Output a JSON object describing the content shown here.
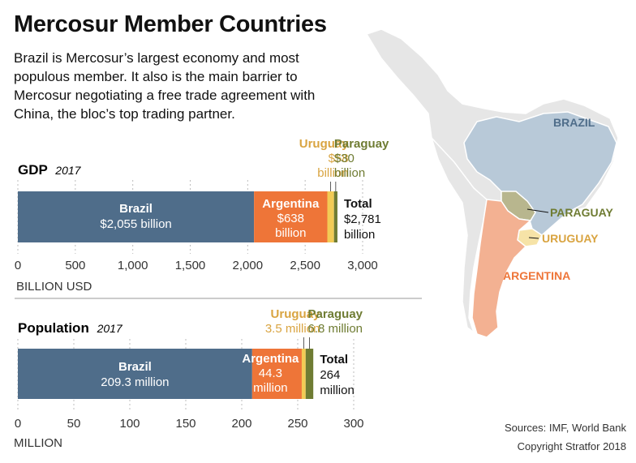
{
  "header": {
    "title": "Mercosur Member Countries",
    "subtitle": "Brazil is Mercosur’s largest economy and most populous member. It also is the main barrier to Mercosur negotiating a free trade agreement with China, the bloc’s top trading partner."
  },
  "colors": {
    "brazil": "#4f6d8a",
    "argentina": "#ee7538",
    "uruguay": "#f2cb55",
    "paraguay": "#6f7c33",
    "uruguay_text": "#d9a441",
    "paraguay_text": "#6f7c33",
    "map_brazil": "#b8c9d8",
    "map_argentina": "#f3b192",
    "map_uruguay": "#f6e3a7",
    "map_paraguay": "#b8b68e",
    "map_land": "#e6e6e6"
  },
  "chart_data": [
    {
      "type": "bar",
      "stacked": true,
      "orientation": "horizontal",
      "title": "GDP",
      "title_suffix": "2017",
      "xlabel": "BILLION USD",
      "xlim": [
        0,
        3000
      ],
      "ticks": [
        0,
        500,
        1000,
        1500,
        2000,
        2500,
        3000
      ],
      "tick_labels": [
        "0",
        "500",
        "1,000",
        "1,500",
        "2,000",
        "2,500",
        "3,000"
      ],
      "grid": true,
      "series": [
        {
          "name": "Brazil",
          "value": 2055,
          "label_lines": [
            "Brazil",
            "$2,055 billion"
          ]
        },
        {
          "name": "Argentina",
          "value": 638,
          "label_lines": [
            "Argentina",
            "$638",
            "billion"
          ]
        },
        {
          "name": "Uruguay",
          "value": 58,
          "label_lines": [
            "Uruguay",
            "$58",
            "billion"
          ]
        },
        {
          "name": "Paraguay",
          "value": 30,
          "label_lines": [
            "Paraguay",
            "$30",
            "billion"
          ]
        }
      ],
      "total": {
        "value": 2781,
        "label_lines": [
          "Total",
          "$2,781",
          "billion"
        ]
      }
    },
    {
      "type": "bar",
      "stacked": true,
      "orientation": "horizontal",
      "title": "Population",
      "title_suffix": "2017",
      "xlabel": "MILLION",
      "xlim": [
        0,
        300
      ],
      "ticks": [
        0,
        50,
        100,
        150,
        200,
        250,
        300
      ],
      "tick_labels": [
        "0",
        "50",
        "100",
        "150",
        "200",
        "250",
        "300"
      ],
      "grid": true,
      "series": [
        {
          "name": "Brazil",
          "value": 209.3,
          "label_lines": [
            "Brazil",
            "209.3 million"
          ]
        },
        {
          "name": "Argentina",
          "value": 44.3,
          "label_lines": [
            "Argentina",
            "44.3",
            "million"
          ]
        },
        {
          "name": "Uruguay",
          "value": 3.5,
          "label_lines": [
            "Uruguay",
            "3.5 million"
          ]
        },
        {
          "name": "Paraguay",
          "value": 6.8,
          "label_lines": [
            "Paraguay",
            "6.8 million"
          ]
        }
      ],
      "total": {
        "value": 264,
        "label_lines": [
          "Total",
          "264",
          "million"
        ]
      }
    }
  ],
  "map": {
    "labels": {
      "brazil": "BRAZIL",
      "paraguay": "PARAGUAY",
      "uruguay": "URUGUAY",
      "argentina": "ARGENTINA"
    }
  },
  "footer": {
    "sources": "Sources: IMF, World Bank",
    "copyright": "Copyright Stratfor 2018"
  }
}
